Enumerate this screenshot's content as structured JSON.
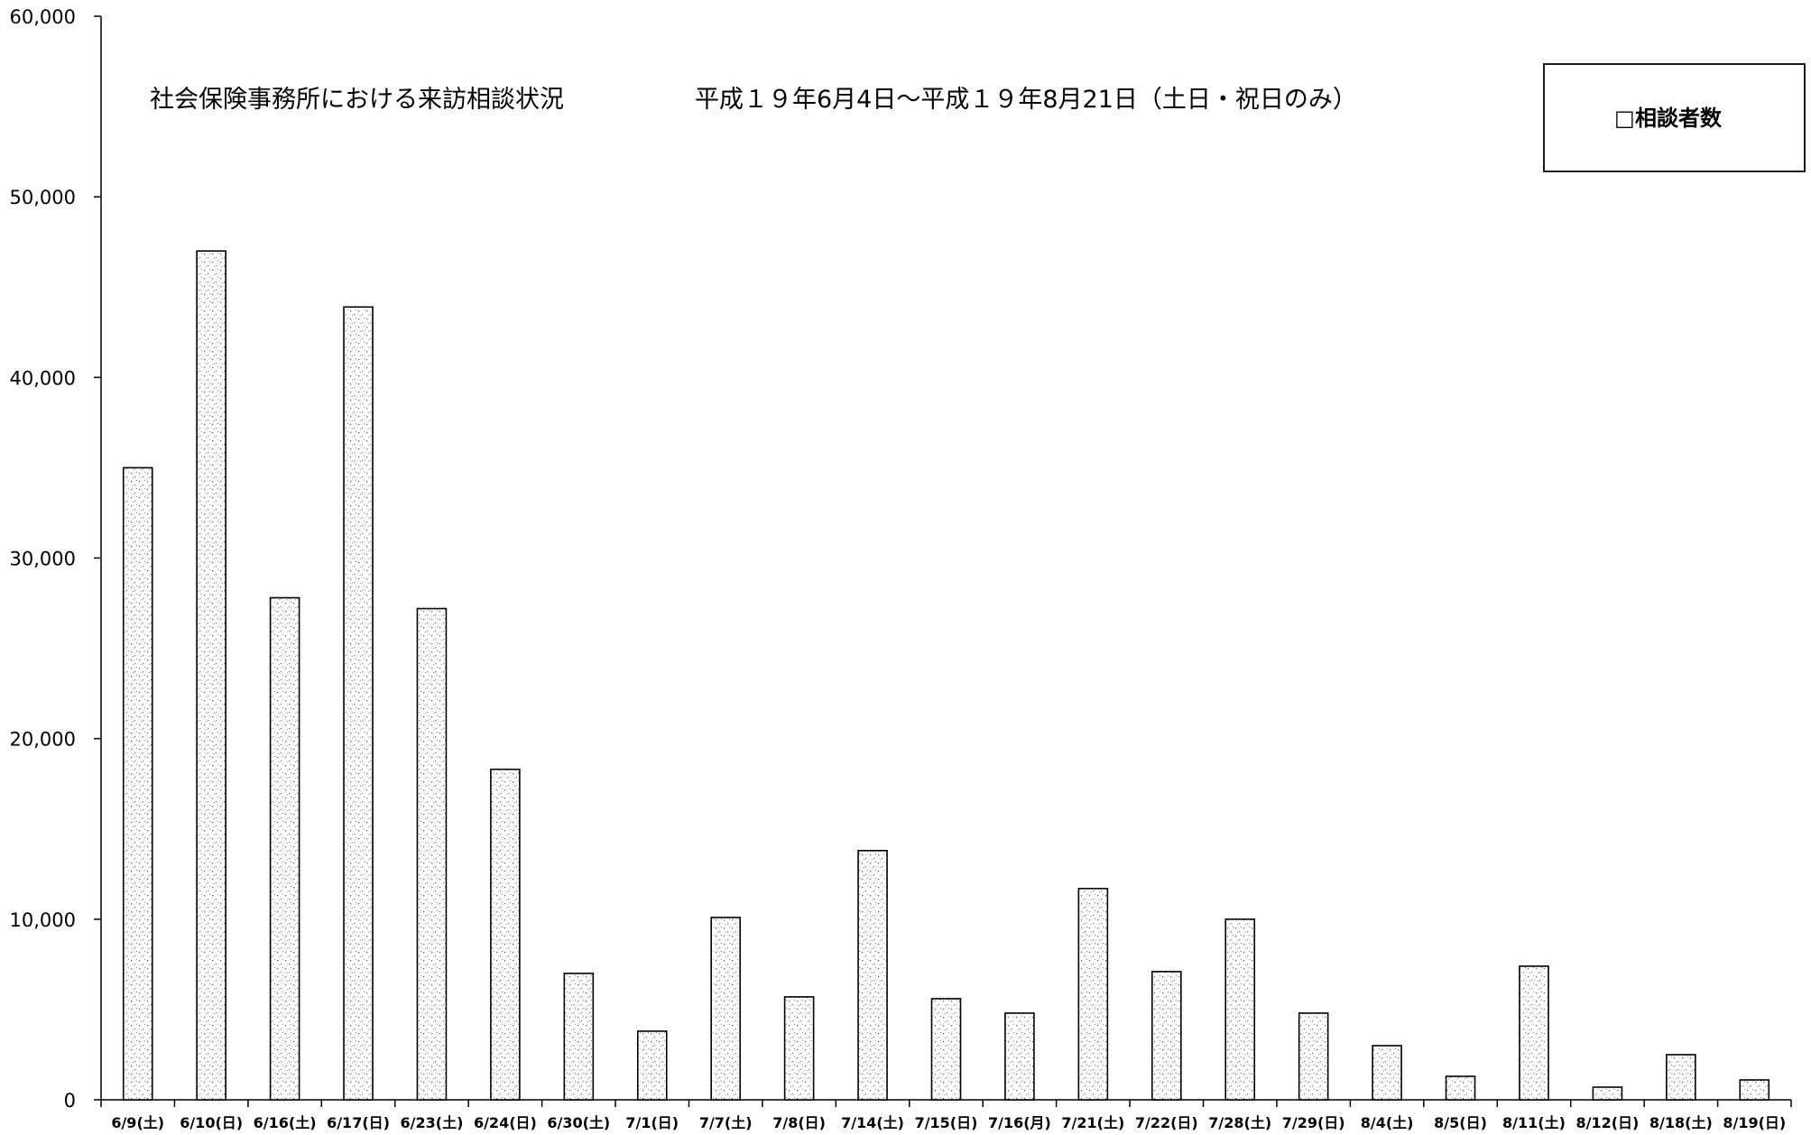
{
  "chart_data": {
    "type": "bar",
    "title": "社会保険事務所における来訪相談状況",
    "subtitle": "平成１９年6月4日～平成１９年8月21日（土日・祝日のみ）",
    "xlabel": "",
    "ylabel": "",
    "ylim": [
      0,
      60000
    ],
    "yticks": [
      "0",
      "10,000",
      "20,000",
      "30,000",
      "40,000",
      "50,000",
      "60,000"
    ],
    "ytick_values": [
      0,
      10000,
      20000,
      30000,
      40000,
      50000,
      60000
    ],
    "grid": false,
    "legend_position": "top-right",
    "categories": [
      "6/9(土)",
      "6/10(日)",
      "6/16(土)",
      "6/17(日)",
      "6/23(土)",
      "6/24(日)",
      "6/30(土)",
      "7/1(日)",
      "7/7(土)",
      "7/8(日)",
      "7/14(土)",
      "7/15(日)",
      "7/16(月)",
      "7/21(土)",
      "7/22(日)",
      "7/28(土)",
      "7/29(日)",
      "8/4(土)",
      "8/5(日)",
      "8/11(土)",
      "8/12(日)",
      "8/18(土)",
      "8/19(日)"
    ],
    "series": [
      {
        "name": "相談者数",
        "values": [
          35000,
          47000,
          27800,
          43900,
          27200,
          18300,
          7000,
          3800,
          10100,
          5700,
          13800,
          5600,
          4800,
          11700,
          7100,
          10000,
          4800,
          3000,
          1300,
          7400,
          700,
          2500,
          1100
        ]
      }
    ],
    "legend_marker": "□"
  }
}
